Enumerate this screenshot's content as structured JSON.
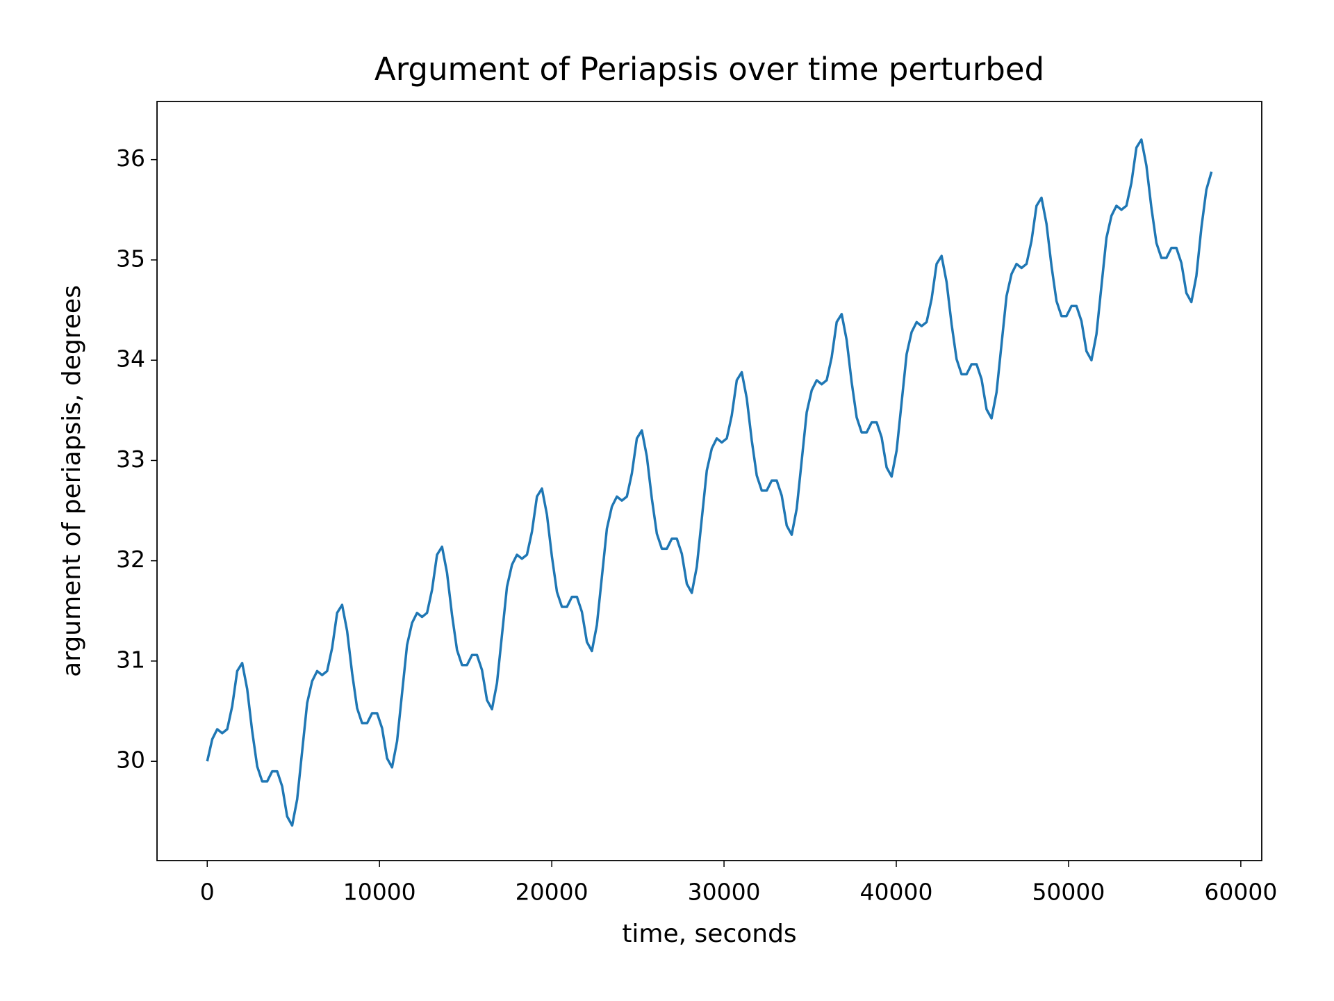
{
  "chart_data": {
    "type": "line",
    "title": "Argument of Periapsis over time perturbed",
    "xlabel": "time, seconds",
    "ylabel": "argument of periapsis, degrees",
    "x": [
      0,
      290,
      580,
      870,
      1160,
      1450,
      1740,
      2030,
      2320,
      2610,
      2900,
      3190,
      3480,
      3770,
      4060,
      4350,
      4640,
      4930,
      5220,
      5510,
      5800,
      6090,
      6380,
      6670,
      6960,
      7250,
      7540,
      7830,
      8120,
      8410,
      8700,
      8990,
      9280,
      9570,
      9860,
      10150,
      10440,
      10730,
      11020,
      11310,
      11600,
      11890,
      12180,
      12470,
      12760,
      13050,
      13340,
      13630,
      13920,
      14210,
      14500,
      14790,
      15080,
      15370,
      15660,
      15950,
      16240,
      16530,
      16820,
      17110,
      17400,
      17690,
      17980,
      18270,
      18560,
      18850,
      19140,
      19430,
      19720,
      20010,
      20300,
      20590,
      20880,
      21170,
      21460,
      21750,
      22040,
      22330,
      22620,
      22910,
      23200,
      23490,
      23780,
      24070,
      24360,
      24650,
      24940,
      25230,
      25520,
      25810,
      26100,
      26390,
      26680,
      26970,
      27260,
      27550,
      27840,
      28130,
      28420,
      28710,
      29000,
      29290,
      29580,
      29870,
      30160,
      30450,
      30740,
      31030,
      31320,
      31610,
      31900,
      32190,
      32480,
      32770,
      33060,
      33350,
      33640,
      33930,
      34220,
      34510,
      34800,
      35090,
      35380,
      35670,
      35960,
      36250,
      36540,
      36830,
      37120,
      37410,
      37700,
      37990,
      38280,
      38570,
      38860,
      39150,
      39440,
      39730,
      40020,
      40310,
      40600,
      40890,
      41180,
      41470,
      41760,
      42050,
      42340,
      42630,
      42920,
      43210,
      43500,
      43790,
      44080,
      44370,
      44660,
      44950,
      45240,
      45530,
      45820,
      46110,
      46400,
      46690,
      46980,
      47270,
      47560,
      47850,
      48140,
      48430,
      48720,
      49010,
      49300,
      49590,
      49880,
      50170,
      50460,
      50750,
      51040,
      51330,
      51620,
      51910,
      52200,
      52490,
      52780,
      53070,
      53360,
      53650,
      53940,
      54230,
      54520,
      54810,
      55100,
      55390,
      55680,
      55970,
      56260,
      56550,
      56840,
      57130,
      57420,
      57710,
      58000,
      58300
    ],
    "series": [
      {
        "name": "argument of periapsis",
        "color": "#1f77b4",
        "values": [
          30.0,
          30.22,
          30.32,
          30.28,
          30.32,
          30.55,
          30.9,
          30.98,
          30.72,
          30.3,
          29.95,
          29.8,
          29.8,
          29.9,
          29.9,
          29.75,
          29.45,
          29.36,
          29.62,
          30.1,
          30.58,
          30.8,
          30.9,
          30.86,
          30.9,
          31.13,
          31.48,
          31.56,
          31.3,
          30.88,
          30.53,
          30.38,
          30.38,
          30.48,
          30.48,
          30.33,
          30.03,
          29.94,
          30.2,
          30.68,
          31.16,
          31.38,
          31.48,
          31.44,
          31.48,
          31.71,
          32.06,
          32.14,
          31.88,
          31.46,
          31.11,
          30.96,
          30.96,
          31.06,
          31.06,
          30.91,
          30.61,
          30.52,
          30.78,
          31.26,
          31.74,
          31.96,
          32.06,
          32.02,
          32.06,
          32.29,
          32.64,
          32.72,
          32.46,
          32.04,
          31.69,
          31.54,
          31.54,
          31.64,
          31.64,
          31.49,
          31.19,
          31.1,
          31.36,
          31.84,
          32.32,
          32.54,
          32.64,
          32.6,
          32.64,
          32.87,
          33.22,
          33.3,
          33.04,
          32.62,
          32.27,
          32.12,
          32.12,
          32.22,
          32.22,
          32.07,
          31.77,
          31.68,
          31.94,
          32.42,
          32.9,
          33.12,
          33.22,
          33.18,
          33.22,
          33.45,
          33.8,
          33.88,
          33.62,
          33.2,
          32.85,
          32.7,
          32.7,
          32.8,
          32.8,
          32.65,
          32.35,
          32.26,
          32.52,
          33.0,
          33.48,
          33.7,
          33.8,
          33.76,
          33.8,
          34.03,
          34.38,
          34.46,
          34.2,
          33.78,
          33.43,
          33.28,
          33.28,
          33.38,
          33.38,
          33.23,
          32.93,
          32.84,
          33.1,
          33.58,
          34.06,
          34.28,
          34.38,
          34.34,
          34.38,
          34.61,
          34.96,
          35.04,
          34.78,
          34.36,
          34.01,
          33.86,
          33.86,
          33.96,
          33.96,
          33.81,
          33.51,
          33.42,
          33.68,
          34.16,
          34.64,
          34.86,
          34.96,
          34.92,
          34.96,
          35.19,
          35.54,
          35.62,
          35.36,
          34.94,
          34.59,
          34.44,
          34.44,
          34.54,
          34.54,
          34.39,
          34.09,
          34.0,
          34.26,
          34.74,
          35.22,
          35.44,
          35.54,
          35.5,
          35.54,
          35.77,
          36.12,
          36.2,
          35.94,
          35.52,
          35.17,
          35.02,
          35.02,
          35.12,
          35.12,
          34.97,
          34.67,
          34.58,
          34.84,
          35.32,
          35.7,
          35.88
        ]
      }
    ],
    "xlim": [
      -2915,
      61215
    ],
    "ylim": [
      29.01,
      36.58
    ],
    "xticks": [
      0,
      10000,
      20000,
      30000,
      40000,
      50000,
      60000
    ],
    "yticks": [
      30,
      31,
      32,
      33,
      34,
      35,
      36
    ],
    "grid": false
  }
}
